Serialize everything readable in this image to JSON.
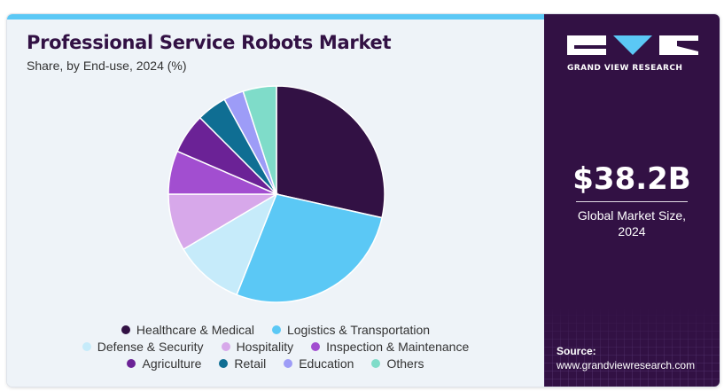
{
  "header": {
    "title": "Professional Service Robots Market",
    "subtitle": "Share, by End-use, 2024 (%)"
  },
  "brand": {
    "name": "GRAND VIEW RESEARCH",
    "logo_letters": "GVR",
    "primary_color": "#321144",
    "accent_color": "#5bc8f5"
  },
  "market": {
    "value": "$38.2B",
    "label_line1": "Global Market Size,",
    "label_line2": "2024"
  },
  "source": {
    "label": "Source:",
    "url": "www.grandviewresearch.com"
  },
  "chart_data": {
    "type": "pie",
    "title": "Professional Service Robots Market",
    "subtitle": "Share, by End-use, 2024 (%)",
    "legend_position": "bottom",
    "start_angle_deg": 0,
    "direction": "clockwise",
    "categories": [
      "Healthcare & Medical",
      "Logistics & Transportation",
      "Defense & Security",
      "Hospitality",
      "Inspection & Maintenance",
      "Agriculture",
      "Retail",
      "Education",
      "Others"
    ],
    "values": [
      28.5,
      27.5,
      10.5,
      8.5,
      6.5,
      6.0,
      4.5,
      3.0,
      5.0
    ],
    "colors": [
      "#321144",
      "#5bc8f5",
      "#c6ebfa",
      "#d7a8ea",
      "#a24ed0",
      "#6b2296",
      "#0f6e93",
      "#9d9cf7",
      "#7fdcc9"
    ]
  }
}
